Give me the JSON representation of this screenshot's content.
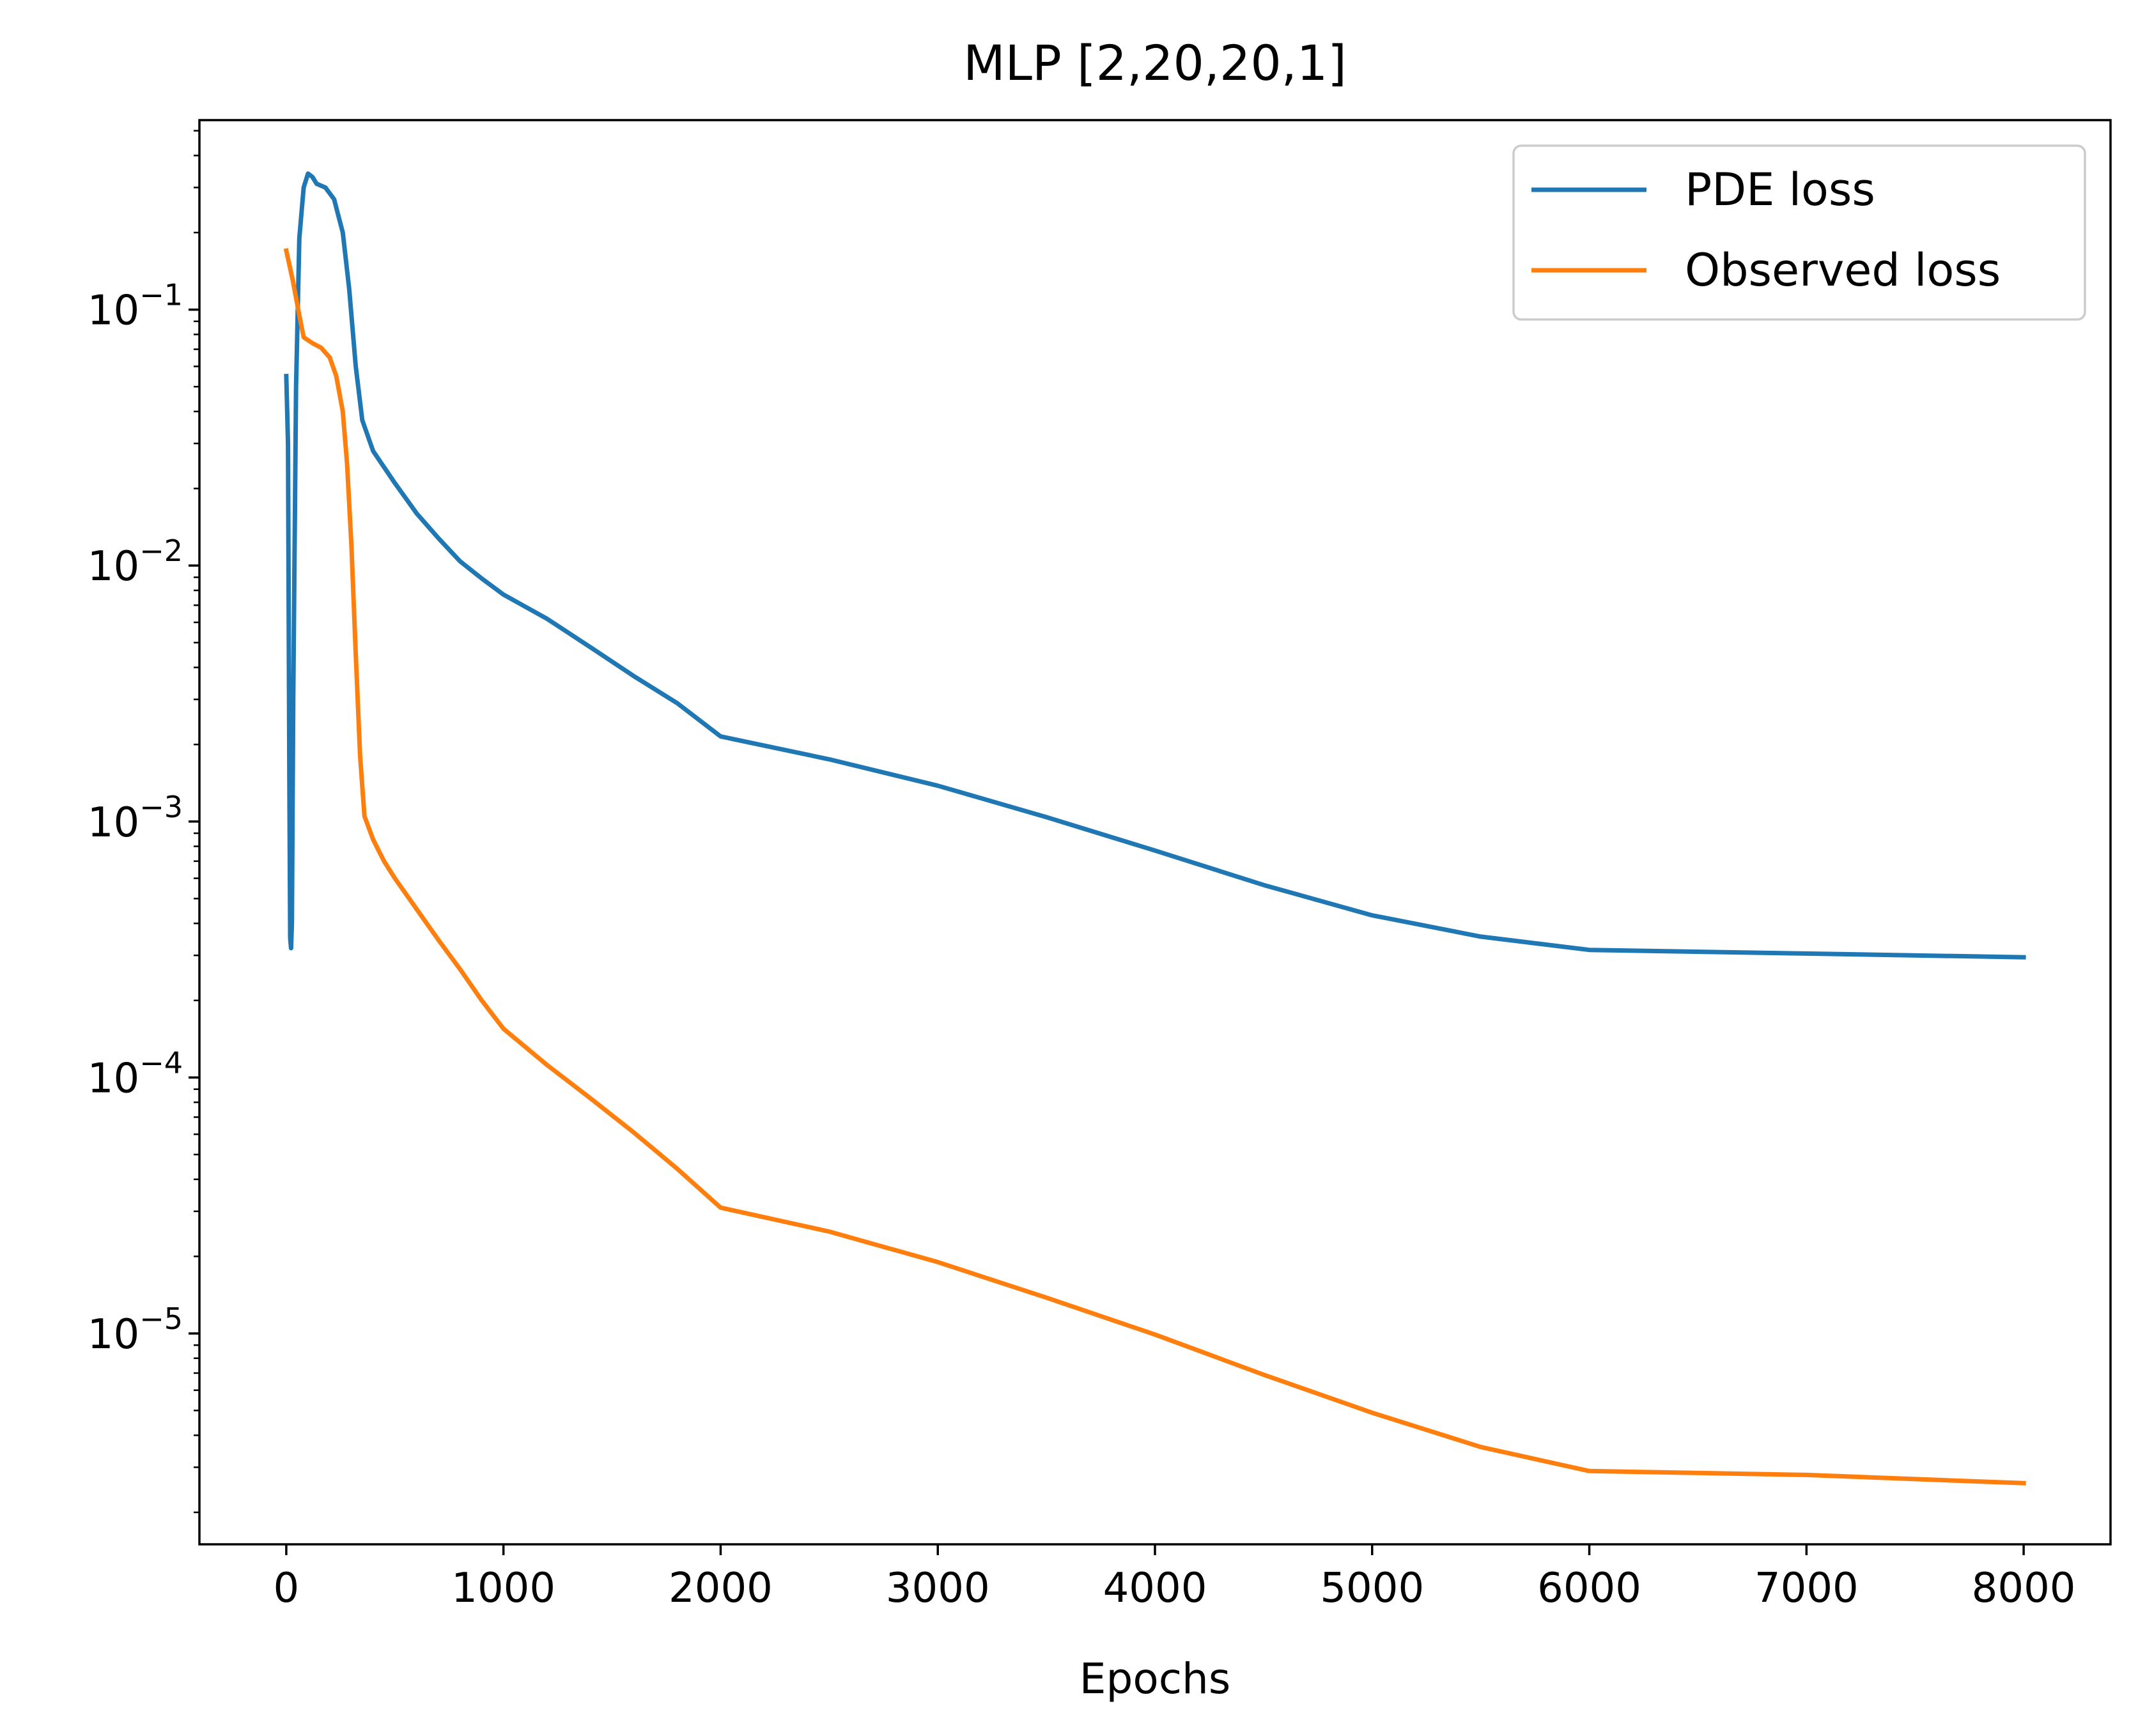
{
  "chart_data": {
    "type": "line",
    "title": "MLP [2,20,20,1]",
    "xlabel": "Epochs",
    "ylabel": "",
    "yscale": "log",
    "xlim": [
      -400,
      8400
    ],
    "ylim": [
      1.5e-06,
      0.55
    ],
    "xticks": [
      0,
      1000,
      2000,
      3000,
      4000,
      5000,
      6000,
      7000,
      8000
    ],
    "xtick_labels": [
      "0",
      "1000",
      "2000",
      "3000",
      "4000",
      "5000",
      "6000",
      "7000",
      "8000"
    ],
    "yticks": [
      {
        "value": 0.1,
        "base": "10",
        "exp": "−1"
      },
      {
        "value": 0.01,
        "base": "10",
        "exp": "−2"
      },
      {
        "value": 0.001,
        "base": "10",
        "exp": "−3"
      },
      {
        "value": 0.0001,
        "base": "10",
        "exp": "−4"
      },
      {
        "value": 1e-05,
        "base": "10",
        "exp": "−5"
      }
    ],
    "legend_position": "top-right",
    "series": [
      {
        "name": "PDE loss",
        "color": "#1f77b4",
        "points": [
          [
            0,
            0.055
          ],
          [
            8,
            0.03
          ],
          [
            14,
            0.0015
          ],
          [
            18,
            0.00035
          ],
          [
            22,
            0.00032
          ],
          [
            26,
            0.0004
          ],
          [
            32,
            0.003
          ],
          [
            45,
            0.05
          ],
          [
            60,
            0.19
          ],
          [
            80,
            0.3
          ],
          [
            100,
            0.34
          ],
          [
            120,
            0.33
          ],
          [
            140,
            0.31
          ],
          [
            180,
            0.3
          ],
          [
            220,
            0.27
          ],
          [
            260,
            0.2
          ],
          [
            290,
            0.12
          ],
          [
            320,
            0.06
          ],
          [
            350,
            0.037
          ],
          [
            400,
            0.028
          ],
          [
            500,
            0.021
          ],
          [
            600,
            0.016
          ],
          [
            700,
            0.0128
          ],
          [
            800,
            0.0104
          ],
          [
            900,
            0.0089
          ],
          [
            1000,
            0.0077
          ],
          [
            1200,
            0.0062
          ],
          [
            1400,
            0.0048
          ],
          [
            1600,
            0.0037
          ],
          [
            1800,
            0.0029
          ],
          [
            2000,
            0.00215
          ],
          [
            2500,
            0.00175
          ],
          [
            3000,
            0.00138
          ],
          [
            3500,
            0.00104
          ],
          [
            4000,
            0.00077
          ],
          [
            4500,
            0.000565
          ],
          [
            5000,
            0.00043
          ],
          [
            5500,
            0.000355
          ],
          [
            6000,
            0.000315
          ],
          [
            7000,
            0.000305
          ],
          [
            8000,
            0.000295
          ]
        ]
      },
      {
        "name": "Observed loss",
        "color": "#ff7f0e",
        "points": [
          [
            0,
            0.17
          ],
          [
            30,
            0.13
          ],
          [
            60,
            0.095
          ],
          [
            80,
            0.078
          ],
          [
            120,
            0.074
          ],
          [
            160,
            0.071
          ],
          [
            200,
            0.065
          ],
          [
            230,
            0.055
          ],
          [
            260,
            0.04
          ],
          [
            280,
            0.025
          ],
          [
            300,
            0.012
          ],
          [
            320,
            0.0045
          ],
          [
            340,
            0.0018
          ],
          [
            360,
            0.00105
          ],
          [
            400,
            0.00085
          ],
          [
            450,
            0.0007
          ],
          [
            500,
            0.0006
          ],
          [
            600,
            0.000455
          ],
          [
            700,
            0.000345
          ],
          [
            800,
            0.000265
          ],
          [
            900,
            0.0002
          ],
          [
            1000,
            0.000155
          ],
          [
            1200,
            0.000112
          ],
          [
            1400,
            8.3e-05
          ],
          [
            1600,
            6.1e-05
          ],
          [
            1800,
            4.4e-05
          ],
          [
            2000,
            3.1e-05
          ],
          [
            2500,
            2.5e-05
          ],
          [
            3000,
            1.9e-05
          ],
          [
            3500,
            1.38e-05
          ],
          [
            4000,
            9.9e-06
          ],
          [
            4500,
            6.9e-06
          ],
          [
            5000,
            4.9e-06
          ],
          [
            5500,
            3.6e-06
          ],
          [
            6000,
            2.9e-06
          ],
          [
            7000,
            2.8e-06
          ],
          [
            8000,
            2.6e-06
          ]
        ]
      }
    ]
  }
}
